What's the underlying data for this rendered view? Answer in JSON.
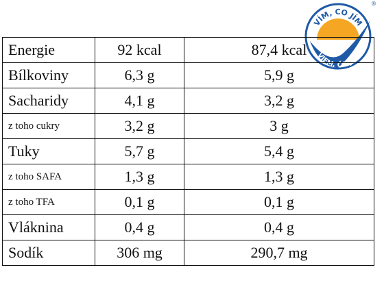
{
  "logo": {
    "top_text": "VÍM, CO JÍM",
    "bottom_text": "VIEM, ČO JEM",
    "mark": "®"
  },
  "table": {
    "rows": [
      [
        "Energie",
        "92 kcal",
        "87,4 kcal"
      ],
      [
        "Bílkoviny",
        "6,3 g",
        "5,9 g"
      ],
      [
        "Sacharidy",
        "4,1 g",
        "3,2 g"
      ],
      [
        "z toho cukry",
        "3,2 g",
        "3 g"
      ],
      [
        "Tuky",
        "5,7 g",
        "5,4 g"
      ],
      [
        "z toho SAFA",
        "1,3 g",
        "1,3 g"
      ],
      [
        "z toho TFA",
        "0,1 g",
        "0,1 g"
      ],
      [
        "Vláknina",
        "0,4 g",
        "0,4 g"
      ],
      [
        "Sodík",
        "306 mg",
        "290,7 mg"
      ]
    ]
  }
}
